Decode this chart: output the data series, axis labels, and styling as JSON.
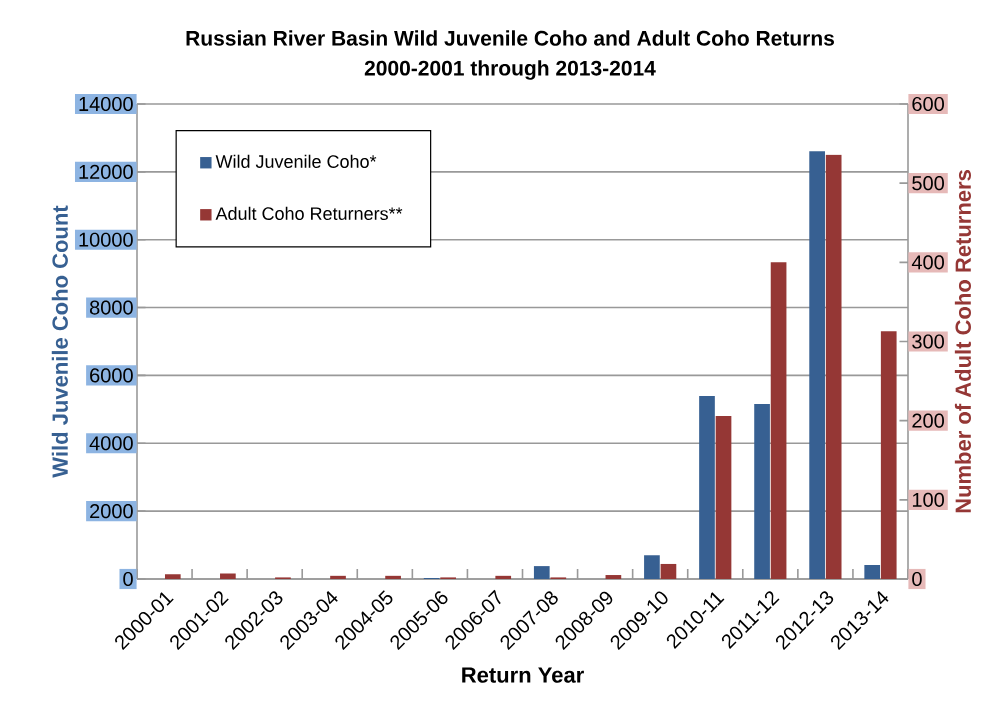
{
  "chart_data": {
    "type": "bar",
    "title": "Russian River Basin Wild Juvenile Coho and Adult Coho Returns",
    "subtitle": "2000-2001 through 2013-2014",
    "xlabel": "Return Year",
    "ylabel": "Wild Juvenile Coho Count",
    "y2label": "Number of Adult Coho Returners",
    "categories": [
      "2000-01",
      "2001-02",
      "2002-03",
      "2003-04",
      "2004-05",
      "2005-06",
      "2006-07",
      "2007-08",
      "2008-09",
      "2009-10",
      "2010-11",
      "2011-12",
      "2012-13",
      "2013-14"
    ],
    "series": [
      {
        "name": "Wild Juvenile Coho*",
        "color": "#376092",
        "values": [
          0,
          0,
          0,
          0,
          0,
          30,
          0,
          380,
          0,
          700,
          5390,
          5160,
          12610,
          410
        ]
      },
      {
        "name": "Adult Coho Returners**",
        "color": "#953735",
        "axis": "y2",
        "values": [
          6,
          7,
          2,
          4,
          4,
          2,
          4,
          2,
          5,
          19,
          206,
          400,
          536,
          313
        ]
      }
    ],
    "ylim": [
      0,
      14000
    ],
    "yticks": [
      0,
      2000,
      4000,
      6000,
      8000,
      10000,
      12000,
      14000
    ],
    "y2lim": [
      0,
      600
    ],
    "y2ticks": [
      0,
      100,
      200,
      300,
      400,
      500,
      600
    ],
    "grid": "y",
    "legend": "top left"
  }
}
